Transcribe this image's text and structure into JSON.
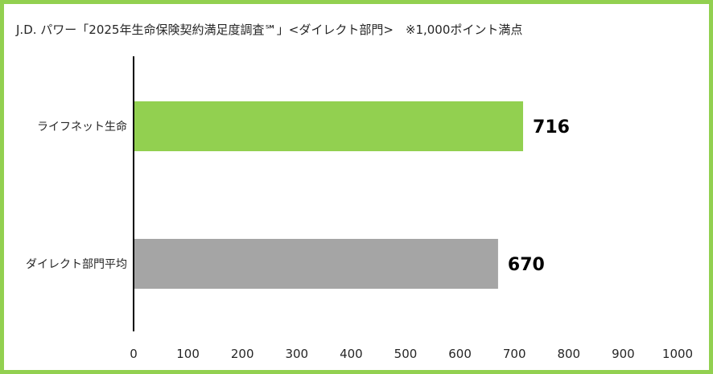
{
  "chart_data": {
    "type": "bar",
    "orientation": "horizontal",
    "title": "J.D. パワー「2025年生命保険契約満足度調査℠」<ダイレクト部門>　※1,000ポイント満点",
    "categories": [
      "ライフネット生命",
      "ダイレクト部門平均"
    ],
    "values": [
      716,
      670
    ],
    "data_labels": [
      "716",
      "670"
    ],
    "colors": [
      "#92d050",
      "#a5a5a5"
    ],
    "xlim": [
      0,
      1000
    ],
    "xticks": [
      "0",
      "100",
      "200",
      "300",
      "400",
      "500",
      "600",
      "700",
      "800",
      "900",
      "1000"
    ],
    "grid": false,
    "border_color": "#92d050"
  }
}
